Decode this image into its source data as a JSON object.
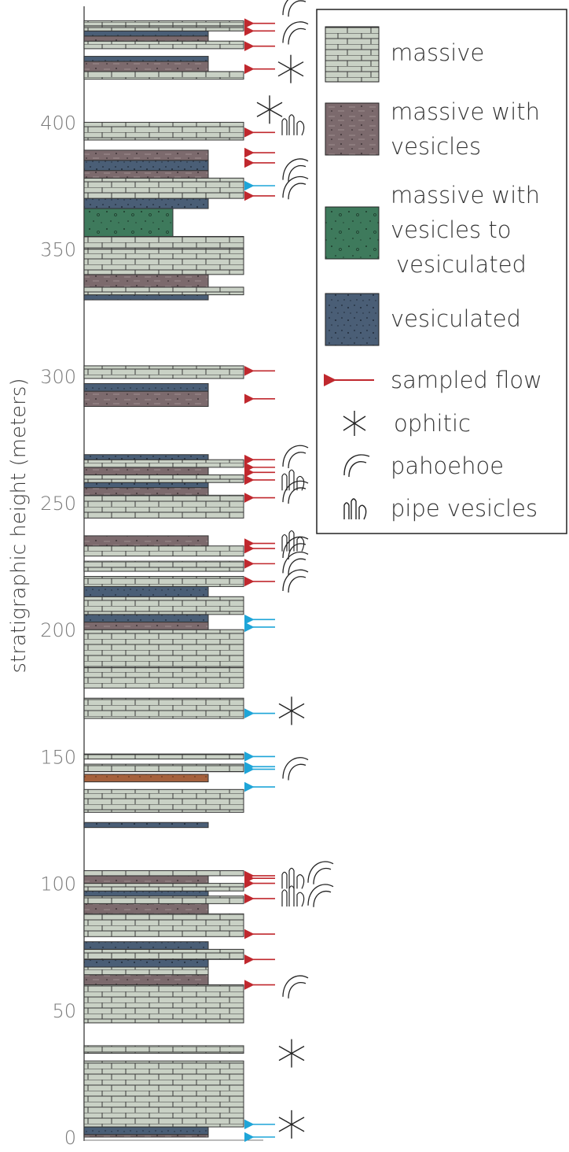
{
  "axis": {
    "title": "stratigraphic height (meters)",
    "ticks": [
      "0",
      "50",
      "100",
      "150",
      "200",
      "250",
      "300",
      "350",
      "400"
    ],
    "range": [
      0,
      440
    ]
  },
  "legend": {
    "massive": "massive",
    "massive_vesicles": [
      "massive with",
      "vesicles"
    ],
    "massive_to_vesiculated": [
      "massive with",
      "vesicles to",
      "vesiculated"
    ],
    "vesiculated": "vesiculated",
    "sampled_flow": "sampled flow",
    "ophitic": "ophitic",
    "pahoehoe": "pahoehoe",
    "pipe_vesicles": "pipe vesicles"
  },
  "colors": {
    "massive": "#c9d1c5",
    "massive_vesicles": "#7c6a6d",
    "massive_to_vesiculated": "#3e7a5c",
    "vesiculated": "#4a5e76",
    "orange_unit": "#a5613d",
    "red_arrow": "#c0282e",
    "blue_arrow": "#1ea5d8"
  },
  "chart_data": {
    "type": "stratigraphic_column",
    "ylabel": "stratigraphic height (meters)",
    "ylim": [
      0,
      440
    ],
    "units": [
      {
        "base": 0,
        "top": 1,
        "lith": "massive_vesicles",
        "width": "partial"
      },
      {
        "base": 1,
        "top": 4,
        "lith": "vesiculated",
        "width": "partial"
      },
      {
        "base": 4,
        "top": 30,
        "lith": "massive",
        "width": "full"
      },
      {
        "base": 33,
        "top": 36,
        "lith": "massive",
        "width": "full"
      },
      {
        "base": 45,
        "top": 60,
        "lith": "massive",
        "width": "full"
      },
      {
        "base": 60,
        "top": 64,
        "lith": "massive_vesicles",
        "width": "partial"
      },
      {
        "base": 64,
        "top": 67,
        "lith": "massive",
        "width": "partial"
      },
      {
        "base": 67,
        "top": 70,
        "lith": "vesiculated",
        "width": "partial"
      },
      {
        "base": 70,
        "top": 74,
        "lith": "massive",
        "width": "full"
      },
      {
        "base": 74,
        "top": 77,
        "lith": "vesiculated",
        "width": "partial"
      },
      {
        "base": 79,
        "top": 88,
        "lith": "massive",
        "width": "full"
      },
      {
        "base": 88,
        "top": 92,
        "lith": "massive_vesicles",
        "width": "partial"
      },
      {
        "base": 92,
        "top": 95,
        "lith": "massive",
        "width": "full"
      },
      {
        "base": 95,
        "top": 97,
        "lith": "vesiculated",
        "width": "partial"
      },
      {
        "base": 97,
        "top": 100,
        "lith": "massive",
        "width": "full"
      },
      {
        "base": 100,
        "top": 103,
        "lith": "massive_vesicles",
        "width": "partial"
      },
      {
        "base": 103,
        "top": 105,
        "lith": "massive",
        "width": "full"
      },
      {
        "base": 122,
        "top": 124,
        "lith": "vesiculated",
        "width": "partial"
      },
      {
        "base": 128,
        "top": 137,
        "lith": "massive",
        "width": "full"
      },
      {
        "base": 140,
        "top": 143,
        "lith": "orange",
        "width": "partial"
      },
      {
        "base": 144,
        "top": 147,
        "lith": "massive",
        "width": "full"
      },
      {
        "base": 149,
        "top": 151,
        "lith": "massive",
        "width": "full"
      },
      {
        "base": 165,
        "top": 173,
        "lith": "massive",
        "width": "full"
      },
      {
        "base": 177,
        "top": 185,
        "lith": "massive",
        "width": "full"
      },
      {
        "base": 185,
        "top": 200,
        "lith": "massive",
        "width": "full"
      },
      {
        "base": 200,
        "top": 203,
        "lith": "massive_vesicles",
        "width": "partial"
      },
      {
        "base": 203,
        "top": 206,
        "lith": "vesiculated",
        "width": "partial"
      },
      {
        "base": 206,
        "top": 213,
        "lith": "massive",
        "width": "full"
      },
      {
        "base": 213,
        "top": 217,
        "lith": "vesiculated",
        "width": "partial"
      },
      {
        "base": 217,
        "top": 221,
        "lith": "massive",
        "width": "full"
      },
      {
        "base": 223,
        "top": 227,
        "lith": "massive",
        "width": "full"
      },
      {
        "base": 229,
        "top": 233,
        "lith": "massive",
        "width": "full"
      },
      {
        "base": 233,
        "top": 237,
        "lith": "massive_vesicles",
        "width": "partial"
      },
      {
        "base": 244,
        "top": 253,
        "lith": "massive",
        "width": "full"
      },
      {
        "base": 253,
        "top": 256,
        "lith": "massive_vesicles",
        "width": "partial"
      },
      {
        "base": 256,
        "top": 258,
        "lith": "vesiculated",
        "width": "partial"
      },
      {
        "base": 258,
        "top": 261,
        "lith": "massive",
        "width": "full"
      },
      {
        "base": 261,
        "top": 264,
        "lith": "massive_vesicles",
        "width": "partial"
      },
      {
        "base": 264,
        "top": 267,
        "lith": "massive",
        "width": "full"
      },
      {
        "base": 267,
        "top": 269,
        "lith": "vesiculated",
        "width": "partial"
      },
      {
        "base": 288,
        "top": 294,
        "lith": "massive_vesicles",
        "width": "partial"
      },
      {
        "base": 294,
        "top": 297,
        "lith": "vesiculated",
        "width": "partial"
      },
      {
        "base": 299,
        "top": 304,
        "lith": "massive",
        "width": "full"
      },
      {
        "base": 330,
        "top": 332,
        "lith": "vesiculated",
        "width": "partial"
      },
      {
        "base": 332,
        "top": 335,
        "lith": "massive",
        "width": "full"
      },
      {
        "base": 335,
        "top": 340,
        "lith": "massive_vesicles",
        "width": "partial"
      },
      {
        "base": 340,
        "top": 350,
        "lith": "massive",
        "width": "full"
      },
      {
        "base": 350,
        "top": 355,
        "lith": "massive",
        "width": "full"
      },
      {
        "base": 355,
        "top": 366,
        "lith": "massive_to_vesiculated",
        "width": "medium"
      },
      {
        "base": 366,
        "top": 370,
        "lith": "vesiculated",
        "width": "partial"
      },
      {
        "base": 370,
        "top": 378,
        "lith": "massive",
        "width": "full"
      },
      {
        "base": 378,
        "top": 381,
        "lith": "massive_vesicles",
        "width": "partial"
      },
      {
        "base": 381,
        "top": 385,
        "lith": "vesiculated",
        "width": "partial"
      },
      {
        "base": 385,
        "top": 389,
        "lith": "massive_vesicles",
        "width": "partial"
      },
      {
        "base": 393,
        "top": 400,
        "lith": "massive",
        "width": "full"
      },
      {
        "base": 417,
        "top": 420,
        "lith": "massive",
        "width": "full"
      },
      {
        "base": 420,
        "top": 424,
        "lith": "massive_vesicles",
        "width": "partial"
      },
      {
        "base": 424,
        "top": 426,
        "lith": "vesiculated",
        "width": "partial"
      },
      {
        "base": 429,
        "top": 432,
        "lith": "massive",
        "width": "full"
      },
      {
        "base": 432,
        "top": 434,
        "lith": "massive_vesicles",
        "width": "partial"
      },
      {
        "base": 434,
        "top": 436,
        "lith": "vesiculated",
        "width": "partial"
      },
      {
        "base": 436,
        "top": 438,
        "lith": "massive",
        "width": "full"
      },
      {
        "base": 438,
        "top": 440,
        "lith": "massive",
        "width": "full"
      }
    ],
    "sampled_flows_red": [
      60,
      70,
      80,
      94,
      100,
      102,
      103,
      219,
      226,
      232,
      234,
      252,
      259,
      262,
      264,
      267,
      291,
      302,
      371,
      384,
      388,
      396,
      421,
      430,
      436,
      439
    ],
    "sampled_flows_blue": [
      0,
      5,
      138,
      145,
      146,
      150,
      167,
      201,
      204,
      375
    ],
    "ophitic": [
      5,
      33,
      168,
      421,
      405
    ],
    "pahoehoe": [
      59,
      95,
      104,
      145,
      219,
      226,
      232,
      254,
      268,
      374,
      381,
      435,
      446
    ],
    "pipe_vesicles": [
      94,
      101,
      234,
      258,
      398
    ]
  }
}
